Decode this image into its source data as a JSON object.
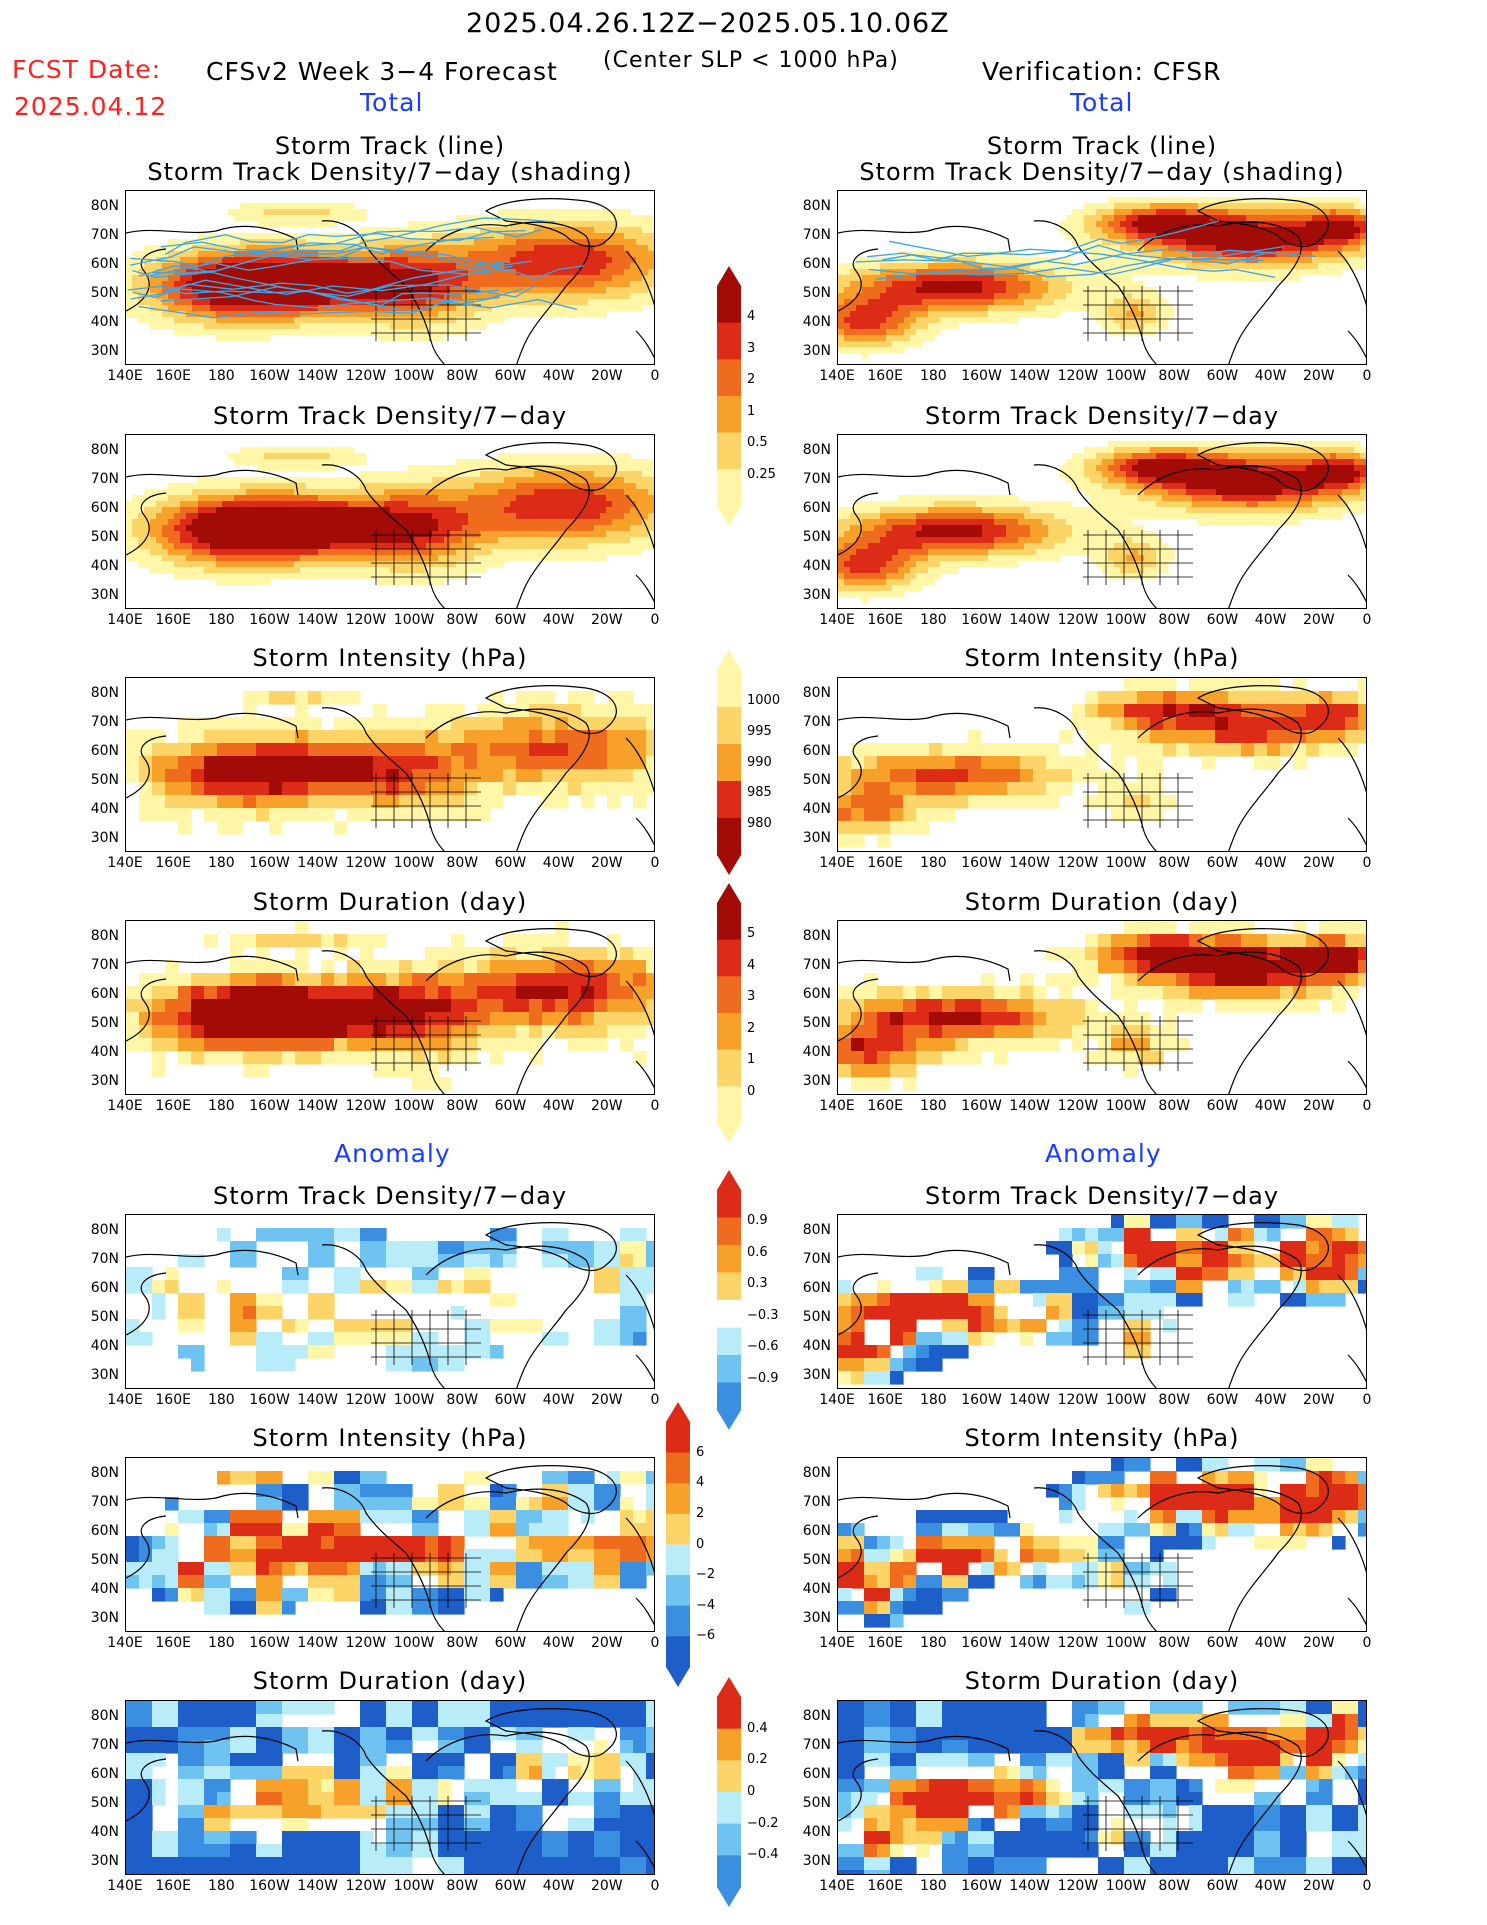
{
  "header": {
    "date_range": "2025.04.26.12Z−2025.05.10.06Z",
    "fcst_label": "FCST Date:",
    "fcst_date": "2025.04.12",
    "forecast_title": "CFSv2 Week 3−4 Forecast",
    "criterion": "(Center SLP < 1000 hPa)",
    "verification": "Verification: CFSR",
    "left_total": "Total",
    "right_total": "Total",
    "left_anomaly": "Anomaly",
    "right_anomaly": "Anomaly"
  },
  "panel_titles": {
    "track_line": "Storm Track (line)",
    "track_shading": "Storm Track Density/7−day (shading)",
    "density": "Storm Track Density/7−day",
    "intensity": "Storm Intensity (hPa)",
    "duration": "Storm Duration (day)"
  },
  "axes": {
    "lat_labels": [
      "80N",
      "70N",
      "60N",
      "50N",
      "40N",
      "30N"
    ],
    "lon_labels": [
      "140E",
      "160E",
      "180",
      "160W",
      "140W",
      "120W",
      "100W",
      "80W",
      "60W",
      "40W",
      "20W",
      "0"
    ]
  },
  "colorbars": {
    "density": [
      "4",
      "3",
      "2",
      "1",
      "0.5",
      "0.25"
    ],
    "intensity": [
      "1000",
      "995",
      "990",
      "985",
      "980"
    ],
    "duration": [
      "5",
      "4",
      "3",
      "2",
      "1",
      "0"
    ],
    "density_anom": [
      "0.9",
      "0.6",
      "0.3",
      "−0.3",
      "−0.6",
      "−0.9"
    ],
    "intensity_anom": [
      "6",
      "4",
      "2",
      "0",
      "−2",
      "−4",
      "−6"
    ],
    "duration_anom": [
      "0.4",
      "0.2",
      "0",
      "−0.2",
      "−0.4"
    ]
  },
  "colors": {
    "pale_yellow": "#fff6a8",
    "light_orange": "#fdd468",
    "orange": "#f7a12a",
    "dark_orange": "#ef6b1e",
    "red": "#dc2b16",
    "dark_red": "#a30c06",
    "light_blue": "#b8ecf8",
    "mid_blue": "#6ec3f0",
    "blue": "#3b8fe0",
    "dark_blue": "#1e5ec8",
    "track_line": "#3aa6e8"
  }
}
